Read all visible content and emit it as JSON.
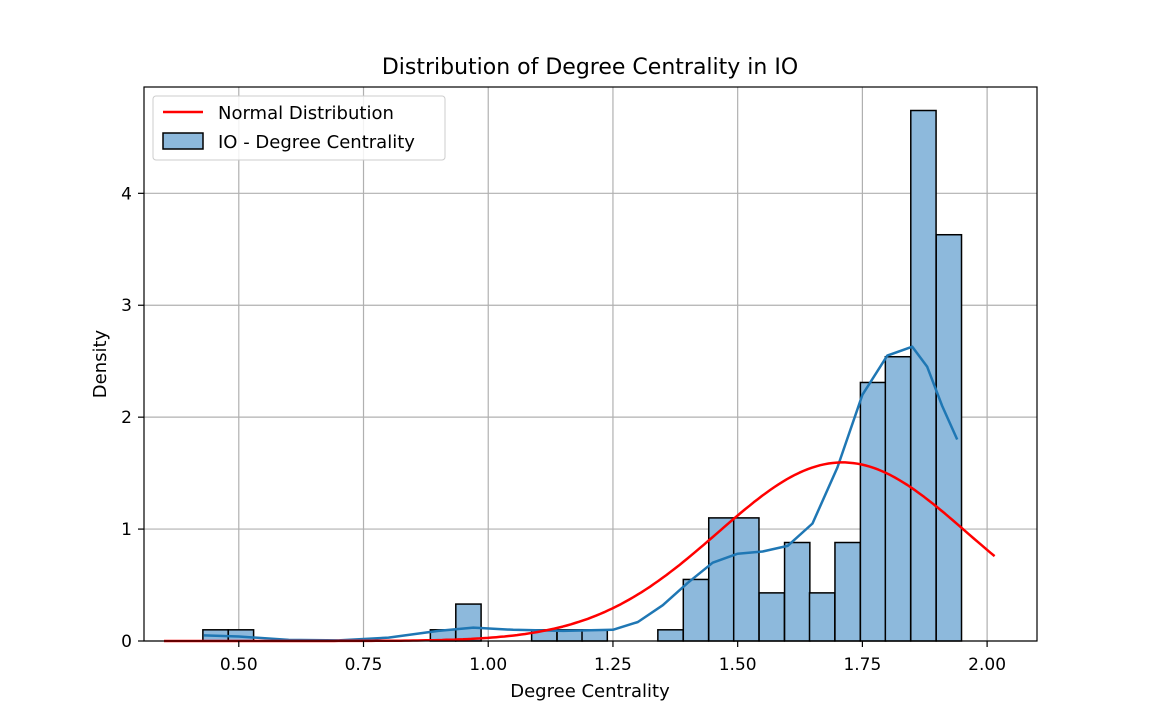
{
  "chart_data": {
    "type": "bar",
    "title": "Distribution of Degree Centrality in IO",
    "xlabel": "Degree Centrality",
    "ylabel": "Density",
    "xlim": [
      0.31,
      2.1
    ],
    "ylim": [
      0,
      4.95
    ],
    "x_ticks": [
      0.5,
      0.75,
      1.0,
      1.25,
      1.5,
      1.75,
      2.0
    ],
    "x_tick_labels": [
      "0.50",
      "0.75",
      "1.00",
      "1.25",
      "1.50",
      "1.75",
      "2.00"
    ],
    "y_ticks": [
      0,
      1,
      2,
      3,
      4
    ],
    "y_tick_labels": [
      "0",
      "1",
      "2",
      "3",
      "4"
    ],
    "grid": true,
    "legend_position": "upper-left",
    "colors": {
      "histogram_fill": "#8db9dc",
      "histogram_edge": "#000000",
      "kde_line": "#1f77b4",
      "normal_line": "#ff0000",
      "grid": "#b0b0b0"
    },
    "series": [
      {
        "name": "IO - Degree Centrality",
        "kind": "histogram",
        "bin_width": 0.0507,
        "bins": [
          {
            "x0": 0.428,
            "density": 0.1
          },
          {
            "x0": 0.479,
            "density": 0.1
          },
          {
            "x0": 0.529,
            "density": 0
          },
          {
            "x0": 0.58,
            "density": 0
          },
          {
            "x0": 0.631,
            "density": 0
          },
          {
            "x0": 0.681,
            "density": 0
          },
          {
            "x0": 0.732,
            "density": 0
          },
          {
            "x0": 0.783,
            "density": 0
          },
          {
            "x0": 0.834,
            "density": 0
          },
          {
            "x0": 0.884,
            "density": 0.1
          },
          {
            "x0": 0.935,
            "density": 0.33
          },
          {
            "x0": 0.986,
            "density": 0
          },
          {
            "x0": 1.036,
            "density": 0
          },
          {
            "x0": 1.087,
            "density": 0.1
          },
          {
            "x0": 1.138,
            "density": 0.1
          },
          {
            "x0": 1.188,
            "density": 0.1
          },
          {
            "x0": 1.239,
            "density": 0
          },
          {
            "x0": 1.29,
            "density": 0
          },
          {
            "x0": 1.34,
            "density": 0.1
          },
          {
            "x0": 1.391,
            "density": 0.55
          },
          {
            "x0": 1.442,
            "density": 1.1
          },
          {
            "x0": 1.492,
            "density": 1.1
          },
          {
            "x0": 1.543,
            "density": 0.43
          },
          {
            "x0": 1.594,
            "density": 0.88
          },
          {
            "x0": 1.644,
            "density": 0.43
          },
          {
            "x0": 1.695,
            "density": 0.88
          },
          {
            "x0": 1.746,
            "density": 2.31
          },
          {
            "x0": 1.796,
            "density": 2.54
          },
          {
            "x0": 1.847,
            "density": 4.74
          },
          {
            "x0": 1.898,
            "density": 3.63
          }
        ]
      },
      {
        "name": "",
        "kind": "kde_line",
        "x": [
          0.43,
          0.5,
          0.6,
          0.7,
          0.8,
          0.9,
          0.97,
          1.05,
          1.15,
          1.25,
          1.3,
          1.35,
          1.4,
          1.45,
          1.5,
          1.55,
          1.6,
          1.65,
          1.7,
          1.75,
          1.8,
          1.85,
          1.88,
          1.91,
          1.94
        ],
        "y": [
          0.05,
          0.04,
          0.01,
          0.005,
          0.03,
          0.09,
          0.12,
          0.1,
          0.09,
          0.1,
          0.17,
          0.32,
          0.52,
          0.7,
          0.78,
          0.8,
          0.85,
          1.05,
          1.55,
          2.2,
          2.55,
          2.63,
          2.45,
          2.1,
          1.8
        ]
      },
      {
        "name": "Normal Distribution",
        "kind": "normal_line",
        "mean": 1.71,
        "sd": 0.25,
        "x_range": [
          0.35,
          2.015
        ]
      }
    ]
  }
}
